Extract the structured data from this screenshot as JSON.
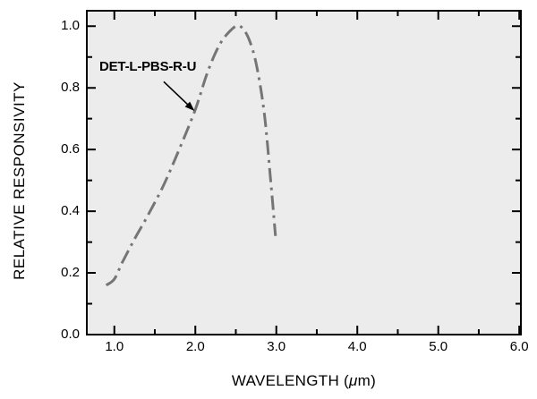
{
  "chart_data": {
    "type": "line",
    "title": "",
    "xlabel": "WAVELENGTH (μm)",
    "xlabel_parts": {
      "pre": "WAVELENGTH (",
      "mu": "μ",
      "post": "m)"
    },
    "ylabel": "RELATIVE RESPONSIVITY",
    "xlim": [
      0.66,
      6.02
    ],
    "ylim": [
      0,
      1.05
    ],
    "grid": false,
    "legend": null,
    "plot_bg": "#ececec",
    "axis_color": "#000000",
    "xticks": {
      "major": [
        1.0,
        2.0,
        3.0,
        4.0,
        5.0,
        6.0
      ],
      "labels": [
        "1.0",
        "2.0",
        "3.0",
        "4.0",
        "5.0",
        "6.0"
      ],
      "minor": [
        1.5,
        2.5,
        3.5,
        4.5,
        5.5
      ]
    },
    "yticks": {
      "major": [
        0.0,
        0.2,
        0.4,
        0.6,
        0.8,
        1.0
      ],
      "labels": [
        "0.0",
        "0.2",
        "0.4",
        "0.6",
        "0.8",
        "1.0"
      ],
      "minor": [
        0.1,
        0.3,
        0.5,
        0.7,
        0.9
      ]
    },
    "series": [
      {
        "name": "DET-L-PBS-R-U",
        "color": "#757575",
        "line_style": "dash-dot",
        "line_width": 3,
        "points": [
          [
            0.9,
            0.16
          ],
          [
            1.0,
            0.18
          ],
          [
            1.1,
            0.235
          ],
          [
            1.25,
            0.31
          ],
          [
            1.4,
            0.38
          ],
          [
            1.6,
            0.48
          ],
          [
            1.8,
            0.6
          ],
          [
            2.0,
            0.73
          ],
          [
            2.15,
            0.85
          ],
          [
            2.3,
            0.94
          ],
          [
            2.45,
            0.99
          ],
          [
            2.55,
            1.0
          ],
          [
            2.65,
            0.965
          ],
          [
            2.75,
            0.88
          ],
          [
            2.85,
            0.72
          ],
          [
            2.93,
            0.5
          ],
          [
            2.99,
            0.32
          ]
        ]
      }
    ],
    "annotation": {
      "label": "DET-L-PBS-R-U",
      "arrow_from": [
        1.61,
        0.82
      ],
      "arrow_to": [
        1.99,
        0.725
      ]
    }
  }
}
